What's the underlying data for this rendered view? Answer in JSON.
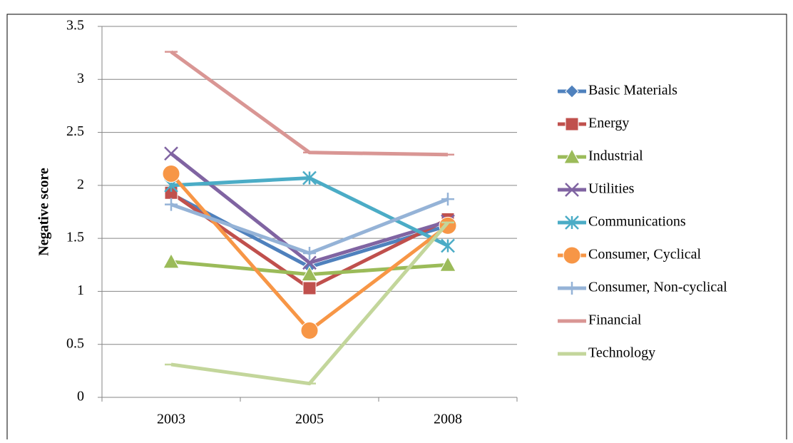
{
  "chart_data": {
    "type": "line",
    "y_label": "Negative score",
    "categories": [
      "2003",
      "2005",
      "2008"
    ],
    "series": [
      {
        "name": "Basic Materials",
        "color": "#4F81BD",
        "marker": "diamond",
        "values": [
          1.92,
          1.23,
          1.62
        ]
      },
      {
        "name": "Energy",
        "color": "#C0504D",
        "marker": "square",
        "values": [
          1.93,
          1.03,
          1.68
        ]
      },
      {
        "name": "Industrial",
        "color": "#9BBB59",
        "marker": "triangle",
        "values": [
          1.28,
          1.16,
          1.25
        ]
      },
      {
        "name": "Utilities",
        "color": "#8064A2",
        "marker": "x",
        "values": [
          2.3,
          1.27,
          1.66
        ]
      },
      {
        "name": "Communications",
        "color": "#4BACC6",
        "marker": "star",
        "values": [
          2.0,
          2.07,
          1.43
        ]
      },
      {
        "name": "Consumer, Cyclical",
        "color": "#F79646",
        "marker": "circle",
        "values": [
          2.11,
          0.63,
          1.62
        ]
      },
      {
        "name": "Consumer, Non-cyclical",
        "color": "#95B3D7",
        "marker": "plus",
        "values": [
          1.82,
          1.36,
          1.87
        ]
      },
      {
        "name": "Financial",
        "color": "#D99694",
        "marker": "dash",
        "values": [
          3.26,
          2.31,
          2.29
        ]
      },
      {
        "name": "Technology",
        "color": "#C3D69B",
        "marker": "dash",
        "values": [
          0.31,
          0.13,
          1.65
        ]
      }
    ],
    "ylim": [
      0,
      3.5
    ],
    "yticks": [
      0,
      0.5,
      1,
      1.5,
      2,
      2.5,
      3,
      3.5
    ],
    "grid": true,
    "legend": "right"
  }
}
